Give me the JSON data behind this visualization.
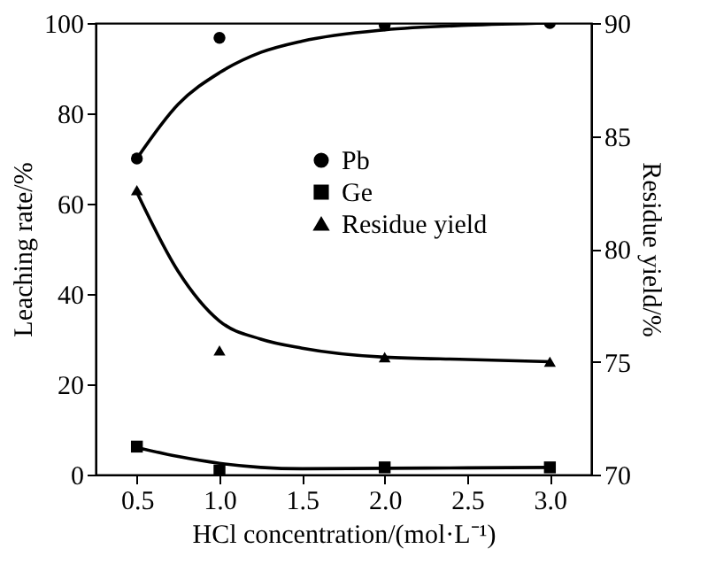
{
  "chart_data": {
    "type": "scatter",
    "xlabel": "HCl concentration/(mol·L⁻¹)",
    "ylabel": "Leaching rate/%",
    "y2label": "Residue yield/%",
    "xlim": [
      0.25,
      3.25
    ],
    "xticks": [
      0.5,
      {
        "value": 1,
        "label": "1.0"
      },
      1.5,
      {
        "value": 2,
        "label": "2.0"
      },
      2.5,
      {
        "value": 3,
        "label": "3.0"
      }
    ],
    "ylim": [
      0,
      100
    ],
    "yticks": [
      0,
      20,
      40,
      60,
      80,
      100
    ],
    "y2lim": [
      70,
      90
    ],
    "y2ticks": [
      70,
      75,
      80,
      85,
      90
    ],
    "legend": "center",
    "grid": false,
    "series": [
      {
        "name": "Pb",
        "marker": "circle",
        "color": "#000000",
        "x": [
          0.5,
          1.0,
          2.0,
          3.0
        ],
        "values": [
          70,
          96.7,
          99.5,
          100
        ]
      },
      {
        "name": "Ge",
        "marker": "square",
        "color": "#000000",
        "x": [
          0.5,
          1.0,
          2.0,
          3.0
        ],
        "values": [
          6.2,
          0.9,
          1.6,
          1.6
        ]
      },
      {
        "name": "Residue yield",
        "marker": "triangle",
        "axis": "y2",
        "color": "#000000",
        "x": [
          0.5,
          1.0,
          2.0,
          3.0
        ],
        "values": [
          82.6,
          75.5,
          75.2,
          75.0
        ]
      },
      {
        "type": "line",
        "color": "#000000",
        "x": [
          0.5,
          0.75,
          1.0,
          1.25,
          1.5,
          2.0,
          2.5,
          3.0
        ],
        "values": [
          70,
          82,
          89,
          93.5,
          96,
          98.5,
          99.5,
          100
        ]
      },
      {
        "type": "line",
        "color": "#000000",
        "x": [
          0.5,
          0.75,
          1.0,
          1.25,
          1.5,
          2.0,
          2.5,
          3.0
        ],
        "values": [
          6,
          4,
          2.5,
          1.6,
          1.3,
          1.4,
          1.5,
          1.6
        ]
      },
      {
        "type": "line",
        "axis": "y2",
        "color": "#000000",
        "x": [
          0.5,
          0.75,
          1.0,
          1.25,
          1.5,
          2.0,
          2.5,
          3.0
        ],
        "values": [
          82.5,
          79,
          76.8,
          76,
          75.6,
          75.2,
          75.1,
          75.0
        ]
      }
    ]
  }
}
